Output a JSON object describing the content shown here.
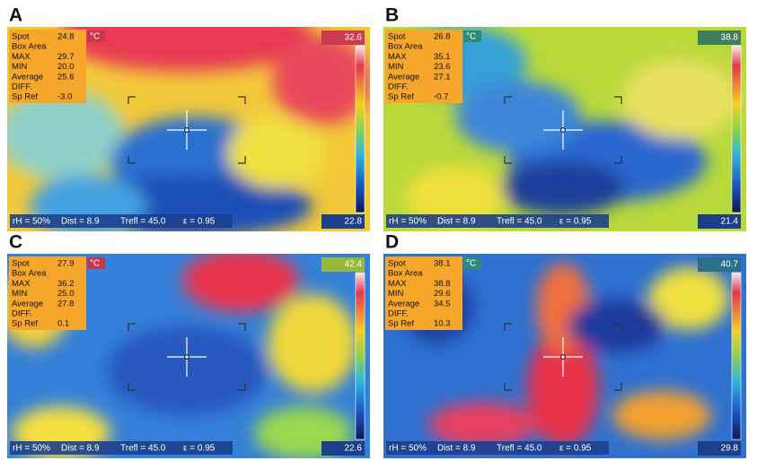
{
  "panels": [
    {
      "label": "A",
      "unit": "°C",
      "scale_max": "32.6",
      "scale_min": "22.8",
      "readings": [
        {
          "name": "Spot",
          "value": "24.8"
        },
        {
          "name": "Box Area"
        },
        {
          "name": "MAX",
          "value": "29.7"
        },
        {
          "name": "MIN",
          "value": "20.0"
        },
        {
          "name": "Average",
          "value": "25.6"
        },
        {
          "name": "DIFF."
        },
        {
          "name": "Sp Ref",
          "value": "-3.0"
        }
      ],
      "status": [
        "rH = 50%",
        "Dist = 8.9",
        "Trefl = 45.0",
        "ε = 0.95"
      ]
    },
    {
      "label": "B",
      "unit": "°C",
      "scale_max": "38.8",
      "scale_min": "21.4",
      "readings": [
        {
          "name": "Spot",
          "value": "26.8"
        },
        {
          "name": "Box Area"
        },
        {
          "name": "MAX",
          "value": "35.1"
        },
        {
          "name": "MIN",
          "value": "23.6"
        },
        {
          "name": "Average",
          "value": "27.1"
        },
        {
          "name": "DIFF."
        },
        {
          "name": "Sp Ref",
          "value": "-0.7"
        }
      ],
      "status": [
        "rH = 50%",
        "Dist = 8.9",
        "Trefl = 45.0",
        "ε = 0.95"
      ]
    },
    {
      "label": "C",
      "unit": "°C",
      "scale_max": "42.4",
      "scale_min": "22.6",
      "readings": [
        {
          "name": "Spot",
          "value": "27.9"
        },
        {
          "name": "Box Area"
        },
        {
          "name": "MAX",
          "value": "36.2"
        },
        {
          "name": "MIN",
          "value": "25.0"
        },
        {
          "name": "Average",
          "value": "27.8"
        },
        {
          "name": "DIFF."
        },
        {
          "name": "Sp Ref",
          "value": "0.1"
        }
      ],
      "status": [
        "rH = 50%",
        "Dist = 8.9",
        "Trefl = 45.0",
        "ε = 0.95"
      ]
    },
    {
      "label": "D",
      "unit": "°C",
      "scale_max": "40.7",
      "scale_min": "29.8",
      "readings": [
        {
          "name": "Spot",
          "value": "38.1"
        },
        {
          "name": "Box Area"
        },
        {
          "name": "MAX",
          "value": "38.8"
        },
        {
          "name": "MIN",
          "value": "29.6"
        },
        {
          "name": "Average",
          "value": "34.5"
        },
        {
          "name": "DIFF."
        },
        {
          "name": "Sp Ref",
          "value": "10.3"
        }
      ],
      "status": [
        "rH = 50%",
        "Dist = 8.9",
        "Trefl = 45.0",
        "ε = 0.95"
      ]
    }
  ]
}
